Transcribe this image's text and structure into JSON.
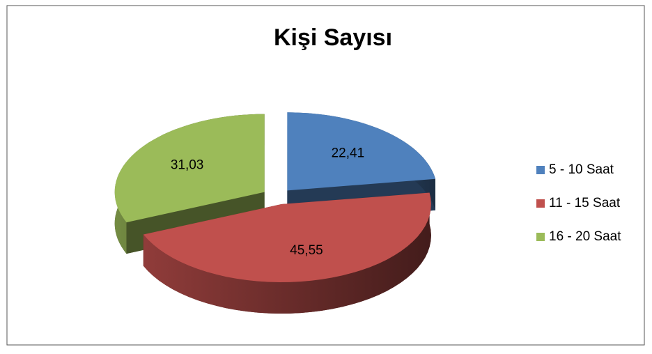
{
  "chart_data": {
    "type": "pie",
    "title": "Kişi Sayısı",
    "categories": [
      "5 - 10 Saat",
      "11 - 15 Saat",
      "16 - 20 Saat"
    ],
    "values": [
      22.41,
      45.55,
      31.03
    ],
    "value_labels": [
      "22,41",
      "45,55",
      "31,03"
    ],
    "colors": [
      "#4f81bd",
      "#c0504d",
      "#9bbb59"
    ],
    "legend": "right"
  }
}
